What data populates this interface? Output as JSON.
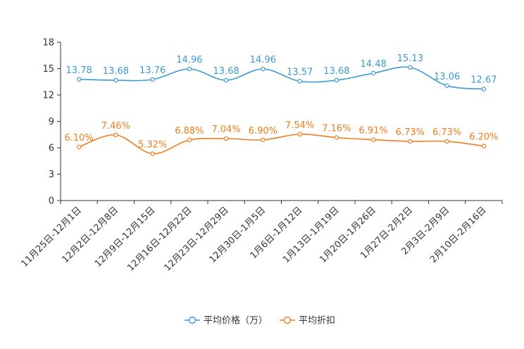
{
  "chart_data": {
    "type": "line",
    "title": "",
    "xlabel": "",
    "ylabel": "",
    "ylim": [
      0,
      18
    ],
    "yticks": [
      0,
      3,
      6,
      9,
      12,
      15,
      18
    ],
    "grid": false,
    "legend_position": "bottom",
    "categories": [
      "11月25日-12月1日",
      "12月2日-12月8日",
      "12月9日-12月15日",
      "12月16日-12月22日",
      "12月23日-12月29日",
      "12月30日-1月5日",
      "1月6日-1月12日",
      "1月13日-1月19日",
      "1月20日-1月26日",
      "1月27日-2月2日",
      "2月3日-2月9日",
      "2月10日-2月16日"
    ],
    "series": [
      {
        "name": "平均价格（万）",
        "color": "#3a9bd0",
        "values": [
          13.78,
          13.68,
          13.76,
          14.96,
          13.68,
          14.96,
          13.57,
          13.68,
          14.48,
          15.13,
          13.06,
          12.67
        ],
        "labels": [
          "13.78",
          "13.68",
          "13.76",
          "14.96",
          "13.68",
          "14.96",
          "13.57",
          "13.68",
          "14.48",
          "15.13",
          "13.06",
          "12.67"
        ]
      },
      {
        "name": "平均折扣",
        "color": "#f07c1b",
        "values": [
          6.1,
          7.46,
          5.32,
          6.88,
          7.04,
          6.9,
          7.54,
          7.16,
          6.91,
          6.73,
          6.73,
          6.2
        ],
        "labels": [
          "6.10%",
          "7.46%",
          "5.32%",
          "6.88%",
          "7.04%",
          "6.90%",
          "7.54%",
          "7.16%",
          "6.91%",
          "6.73%",
          "6.73%",
          "6.20%"
        ]
      }
    ]
  }
}
